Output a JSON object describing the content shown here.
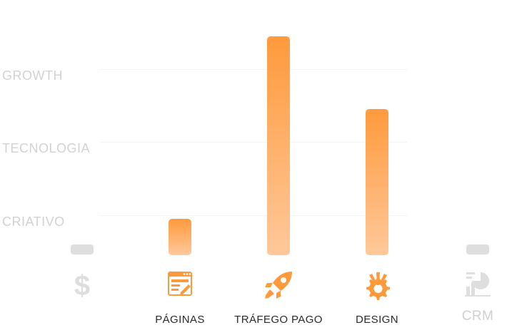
{
  "chart_data": {
    "type": "bar",
    "y_levels": [
      "CRIATIVO",
      "TECNOLOGIA",
      "GROWTH"
    ],
    "ylim": [
      0,
      3
    ],
    "grid": true,
    "categories": [
      "",
      "PÁGINAS",
      "TRÁFEGO PAGO",
      "DESIGN",
      "CRM"
    ],
    "values": [
      0,
      0.5,
      3.0,
      2.0,
      0
    ],
    "muted": [
      true,
      false,
      false,
      false,
      true
    ],
    "icons": [
      "dollar-icon",
      "web-page-edit-icon",
      "rocket-icon",
      "design-gear-icon",
      "crm-chart-icon"
    ],
    "colors": {
      "bar_top": "#ff9a3c",
      "bar_bottom": "#ffc89a",
      "icon_active": "#ff9a3c",
      "muted": "#dedede",
      "level_label": "#d2d2d2",
      "category_label": "#2b2b2b"
    }
  }
}
